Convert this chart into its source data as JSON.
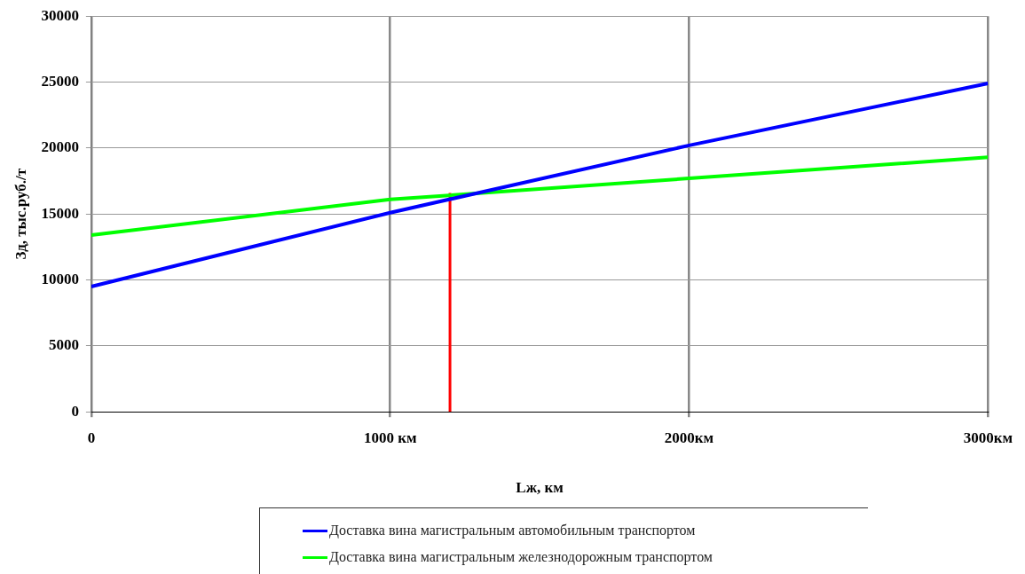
{
  "chart_data": {
    "type": "line",
    "xlabel": "Lж, км",
    "ylabel": "Зд, тыс.руб./т",
    "xlim": [
      0,
      3000
    ],
    "xticks": [
      0,
      {
        "value": 1000,
        "label": "1000 км"
      },
      {
        "value": 2000,
        "label": "2000км"
      },
      {
        "value": 3000,
        "label": "3000км"
      }
    ],
    "ylim": [
      0,
      30000
    ],
    "yticks": [
      0,
      5000,
      10000,
      15000,
      20000,
      25000,
      30000
    ],
    "grid": true,
    "legend": "bottom",
    "marker": "none",
    "line_style": "solid",
    "series": [
      {
        "name": "Доставка вина магистральным автомобильным транспортом",
        "color": "#0000ff",
        "x": [
          0,
          1000,
          2000,
          3000
        ],
        "values": [
          9500,
          15100,
          20200,
          24900
        ]
      },
      {
        "name": "Доставка вина магистральным железнодорожным транспортом",
        "color": "#00ff00",
        "x": [
          0,
          1000,
          2000,
          3000
        ],
        "values": [
          13400,
          16100,
          17700,
          19300
        ]
      },
      {
        "color": "#ff0000",
        "x": [
          1200,
          1200
        ],
        "values": [
          0,
          16600
        ]
      }
    ]
  }
}
